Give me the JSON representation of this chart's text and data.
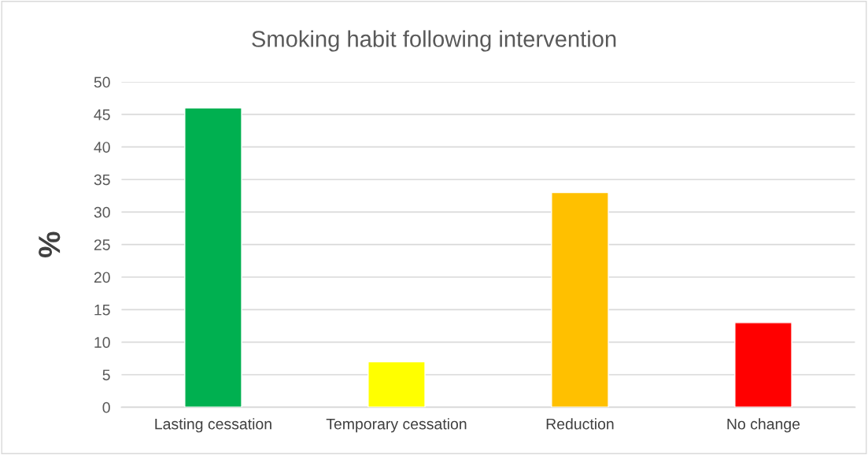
{
  "chart_data": {
    "type": "bar",
    "title": "Smoking habit following intervention",
    "ylabel": "%",
    "categories": [
      "Lasting cessation",
      "Temporary cessation",
      "Reduction",
      "No change"
    ],
    "values": [
      46,
      7,
      33,
      13
    ],
    "colors": [
      "#00b050",
      "#ffff00",
      "#ffc000",
      "#ff0000"
    ],
    "ylim": [
      0,
      50
    ],
    "yticks": [
      0,
      5,
      10,
      15,
      20,
      25,
      30,
      35,
      40,
      45,
      50
    ],
    "grid": "y",
    "legend": false
  }
}
